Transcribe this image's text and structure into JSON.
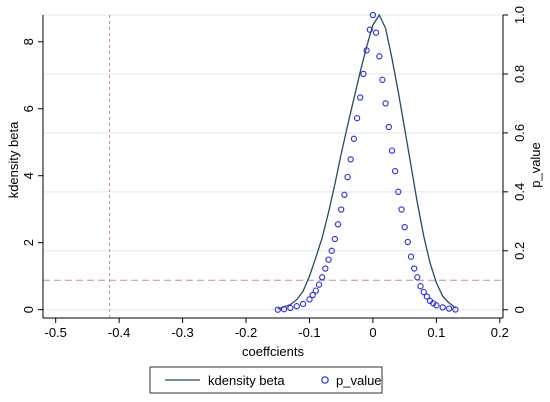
{
  "chart_data": {
    "type": "line",
    "xlabel": "coeffcients",
    "ylabel_left": "kdensity beta",
    "ylabel_right": "p_value",
    "x_ticks": [
      "-0.5",
      "-0.4",
      "-0.3",
      "-0.2",
      "-0.1",
      "0",
      "0.1",
      "0.2"
    ],
    "x_tick_values": [
      -0.5,
      -0.4,
      -0.3,
      -0.2,
      -0.1,
      0,
      0.1,
      0.2
    ],
    "y_left_ticks": [
      "0",
      "2",
      "4",
      "6",
      "8"
    ],
    "y_left_tick_values": [
      0,
      2,
      4,
      6,
      8
    ],
    "y_right_ticks": [
      "0",
      "0.2",
      "0.4",
      "0.6",
      "0.8",
      "1.0"
    ],
    "y_right_tick_values": [
      0,
      0.2,
      0.4,
      0.6,
      0.8,
      1.0
    ],
    "xlim": [
      -0.52,
      0.205
    ],
    "ylim_left": [
      -0.25,
      8.8
    ],
    "ylim_right": [
      -0.028,
      1.0
    ],
    "grid": "horizontal, right axis",
    "reference_lines": [
      {
        "orientation": "vertical",
        "value": -0.415,
        "style": "dashed",
        "color": "#c78b9d"
      },
      {
        "orientation": "horizontal",
        "axis": "right",
        "value": 0.1,
        "style": "dashed",
        "color": "#c78b9d"
      }
    ],
    "legend_position": "bottom",
    "series": [
      {
        "name": "kdensity beta",
        "kind": "line",
        "axis": "left",
        "color": "#1f4e5e",
        "x": [
          -0.15,
          -0.13,
          -0.12,
          -0.11,
          -0.1,
          -0.09,
          -0.08,
          -0.07,
          -0.06,
          -0.05,
          -0.04,
          -0.03,
          -0.02,
          -0.01,
          0.0,
          0.01,
          0.02,
          0.03,
          0.04,
          0.05,
          0.06,
          0.07,
          0.08,
          0.09,
          0.1,
          0.11,
          0.12,
          0.13
        ],
        "y": [
          0.02,
          0.15,
          0.3,
          0.55,
          1.0,
          1.55,
          2.15,
          2.9,
          3.75,
          4.65,
          5.5,
          6.3,
          7.1,
          7.85,
          8.5,
          8.8,
          8.4,
          7.5,
          6.5,
          5.4,
          4.3,
          3.2,
          2.2,
          1.4,
          0.8,
          0.4,
          0.2,
          0.05
        ]
      },
      {
        "name": "p_value",
        "kind": "scatter",
        "axis": "right",
        "color": "#2b2bd6",
        "x": [
          -0.15,
          -0.14,
          -0.13,
          -0.12,
          -0.11,
          -0.1,
          -0.095,
          -0.09,
          -0.085,
          -0.08,
          -0.075,
          -0.07,
          -0.065,
          -0.06,
          -0.055,
          -0.05,
          -0.045,
          -0.04,
          -0.035,
          -0.03,
          -0.025,
          -0.02,
          -0.015,
          -0.01,
          -0.005,
          0.0,
          0.005,
          0.01,
          0.015,
          0.02,
          0.025,
          0.03,
          0.035,
          0.04,
          0.045,
          0.05,
          0.055,
          0.06,
          0.065,
          0.07,
          0.075,
          0.08,
          0.085,
          0.09,
          0.095,
          0.1,
          0.11,
          0.12,
          0.13
        ],
        "y": [
          0.0,
          0.002,
          0.006,
          0.012,
          0.02,
          0.035,
          0.05,
          0.065,
          0.085,
          0.11,
          0.14,
          0.17,
          0.2,
          0.24,
          0.29,
          0.34,
          0.39,
          0.45,
          0.51,
          0.58,
          0.65,
          0.72,
          0.8,
          0.88,
          0.95,
          1.0,
          0.94,
          0.86,
          0.78,
          0.7,
          0.62,
          0.54,
          0.47,
          0.4,
          0.34,
          0.28,
          0.23,
          0.18,
          0.14,
          0.11,
          0.08,
          0.06,
          0.045,
          0.03,
          0.022,
          0.015,
          0.008,
          0.004,
          0.001
        ]
      }
    ]
  }
}
